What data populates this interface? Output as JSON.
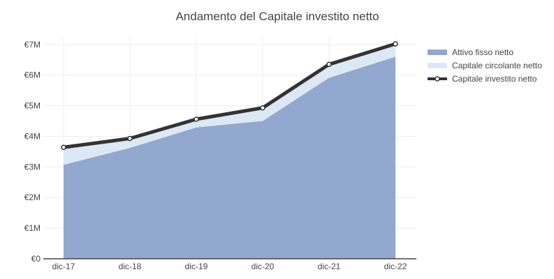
{
  "chart_data": {
    "type": "area",
    "title": "Andamento del Capitale investito netto",
    "xlabel": "",
    "ylabel": "",
    "categories": [
      "dic-17",
      "dic-18",
      "dic-19",
      "dic-20",
      "dic-21",
      "dic-22"
    ],
    "y_tick_labels": [
      "€0",
      "€1M",
      "€2M",
      "€3M",
      "€4M",
      "€5M",
      "€6M",
      "€7M"
    ],
    "y_tick_values": [
      0,
      1000000,
      2000000,
      3000000,
      4000000,
      5000000,
      6000000,
      7000000
    ],
    "ylim": [
      0,
      7200000
    ],
    "grid": true,
    "legend_position": "right",
    "series": [
      {
        "name": "Attivo fisso netto",
        "kind": "area",
        "values": [
          3070000,
          3620000,
          4290000,
          4500000,
          5910000,
          6600000
        ],
        "color": "#93a8cf"
      },
      {
        "name": "Capitale circolante netto",
        "kind": "stacked-area",
        "values": [
          570000,
          310000,
          270000,
          430000,
          440000,
          420000
        ],
        "color": "#dde8f6"
      },
      {
        "name": "Capitale investito netto",
        "kind": "line",
        "values": [
          3640000,
          3930000,
          4560000,
          4930000,
          6350000,
          7020000
        ],
        "color": "#333333"
      }
    ]
  }
}
